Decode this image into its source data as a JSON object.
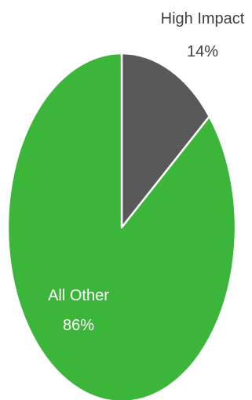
{
  "chart_data": {
    "type": "pie",
    "title": "",
    "start_angle_deg": 0,
    "direction": "clockwise",
    "slice_border_color": "#ffffff",
    "slices": [
      {
        "label": "High Impact",
        "value": 14,
        "value_label": "14%",
        "color": "#595959",
        "label_color": "#404040",
        "label_placement": "outside"
      },
      {
        "label": "All Other",
        "value": 86,
        "value_label": "86%",
        "color": "#3cb63a",
        "label_color": "#ffffff",
        "label_placement": "inside"
      }
    ]
  }
}
